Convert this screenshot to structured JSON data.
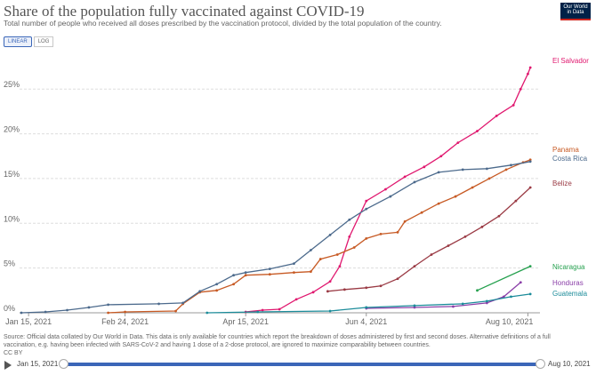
{
  "header": {
    "title": "Share of the population fully vaccinated against COVID-19",
    "subtitle": "Total number of people who received all doses prescribed by the vaccination protocol, divided by the total population of the country."
  },
  "logo": {
    "line1": "Our World",
    "line2": "in Data"
  },
  "scale_toggle": {
    "linear": "LINEAR",
    "log": "LOG",
    "selected": "linear"
  },
  "source_text": "Source: Official data collated by Our World in Data. This data is only available for countries which report the breakdown of doses administered by first and second doses. Alternative definitions of a full vaccination, e.g. having been infected with SARS-CoV-2 and having 1 dose of a 2-dose protocol, are ignored to maximize comparability between countries.",
  "license": "CC BY",
  "timeline": {
    "start": "Jan 15, 2021",
    "end": "Aug 10, 2021",
    "start_fraction": 0,
    "end_fraction": 1
  },
  "colors": {
    "El Salvador": "#e0186f",
    "Panama": "#c75a24",
    "Costa Rica": "#4c6a8c",
    "Belize": "#9a3a44",
    "Nicaragua": "#25a04e",
    "Honduras": "#8b3fa8",
    "Guatemala": "#1c8c9a"
  },
  "chart_data": {
    "type": "line",
    "title": "Share of the population fully vaccinated against COVID-19",
    "xlabel": "",
    "ylabel": "",
    "x_range": [
      "2021-01-12",
      "2021-08-15"
    ],
    "ylim": [
      0,
      28
    ],
    "x_ticks": [
      {
        "date": "2021-01-15",
        "label": "Jan 15, 2021"
      },
      {
        "date": "2021-02-24",
        "label": "Feb 24, 2021"
      },
      {
        "date": "2021-04-15",
        "label": "Apr 15, 2021"
      },
      {
        "date": "2021-06-04",
        "label": "Jun 4, 2021"
      },
      {
        "date": "2021-08-10",
        "label": "Aug 10, 2021"
      }
    ],
    "y_ticks": [
      {
        "value": 0,
        "label": "0%"
      },
      {
        "value": 5,
        "label": "5%"
      },
      {
        "value": 10,
        "label": "10%"
      },
      {
        "value": 15,
        "label": "15%"
      },
      {
        "value": 20,
        "label": "20%"
      },
      {
        "value": 25,
        "label": "25%"
      }
    ],
    "grid": true,
    "legend": "labels at line ends (right)",
    "series": [
      {
        "name": "El Salvador",
        "points": [
          {
            "x": "2021-04-15",
            "y": 0.1
          },
          {
            "x": "2021-04-22",
            "y": 0.3
          },
          {
            "x": "2021-04-29",
            "y": 0.4
          },
          {
            "x": "2021-05-06",
            "y": 1.5
          },
          {
            "x": "2021-05-13",
            "y": 2.3
          },
          {
            "x": "2021-05-20",
            "y": 3.5
          },
          {
            "x": "2021-05-24",
            "y": 5.2
          },
          {
            "x": "2021-05-28",
            "y": 8.5
          },
          {
            "x": "2021-06-04",
            "y": 12.5
          },
          {
            "x": "2021-06-12",
            "y": 13.8
          },
          {
            "x": "2021-06-20",
            "y": 15.2
          },
          {
            "x": "2021-06-28",
            "y": 16.3
          },
          {
            "x": "2021-07-05",
            "y": 17.5
          },
          {
            "x": "2021-07-12",
            "y": 19.0
          },
          {
            "x": "2021-07-20",
            "y": 20.3
          },
          {
            "x": "2021-07-28",
            "y": 22.0
          },
          {
            "x": "2021-08-04",
            "y": 23.2
          },
          {
            "x": "2021-08-07",
            "y": 25.0
          },
          {
            "x": "2021-08-10",
            "y": 26.7
          },
          {
            "x": "2021-08-11",
            "y": 27.4
          }
        ]
      },
      {
        "name": "Panama",
        "points": [
          {
            "x": "2021-02-17",
            "y": 0.0
          },
          {
            "x": "2021-02-24",
            "y": 0.1
          },
          {
            "x": "2021-03-17",
            "y": 0.2
          },
          {
            "x": "2021-03-20",
            "y": 1.0
          },
          {
            "x": "2021-03-27",
            "y": 2.3
          },
          {
            "x": "2021-04-03",
            "y": 2.5
          },
          {
            "x": "2021-04-10",
            "y": 3.2
          },
          {
            "x": "2021-04-15",
            "y": 4.2
          },
          {
            "x": "2021-04-25",
            "y": 4.3
          },
          {
            "x": "2021-05-05",
            "y": 4.5
          },
          {
            "x": "2021-05-12",
            "y": 4.6
          },
          {
            "x": "2021-05-16",
            "y": 6.0
          },
          {
            "x": "2021-05-23",
            "y": 6.5
          },
          {
            "x": "2021-05-30",
            "y": 7.3
          },
          {
            "x": "2021-06-04",
            "y": 8.3
          },
          {
            "x": "2021-06-10",
            "y": 8.8
          },
          {
            "x": "2021-06-17",
            "y": 9.0
          },
          {
            "x": "2021-06-20",
            "y": 10.2
          },
          {
            "x": "2021-06-27",
            "y": 11.2
          },
          {
            "x": "2021-07-04",
            "y": 12.2
          },
          {
            "x": "2021-07-11",
            "y": 13.0
          },
          {
            "x": "2021-07-18",
            "y": 14.0
          },
          {
            "x": "2021-07-25",
            "y": 15.0
          },
          {
            "x": "2021-08-01",
            "y": 16.0
          },
          {
            "x": "2021-08-08",
            "y": 16.8
          },
          {
            "x": "2021-08-11",
            "y": 17.1
          }
        ]
      },
      {
        "name": "Costa Rica",
        "points": [
          {
            "x": "2021-01-12",
            "y": 0.0
          },
          {
            "x": "2021-01-22",
            "y": 0.1
          },
          {
            "x": "2021-01-31",
            "y": 0.3
          },
          {
            "x": "2021-02-09",
            "y": 0.6
          },
          {
            "x": "2021-02-17",
            "y": 0.9
          },
          {
            "x": "2021-03-10",
            "y": 1.0
          },
          {
            "x": "2021-03-20",
            "y": 1.1
          },
          {
            "x": "2021-03-27",
            "y": 2.4
          },
          {
            "x": "2021-04-03",
            "y": 3.2
          },
          {
            "x": "2021-04-10",
            "y": 4.2
          },
          {
            "x": "2021-04-15",
            "y": 4.5
          },
          {
            "x": "2021-04-25",
            "y": 4.9
          },
          {
            "x": "2021-05-05",
            "y": 5.5
          },
          {
            "x": "2021-05-12",
            "y": 7.0
          },
          {
            "x": "2021-05-20",
            "y": 8.7
          },
          {
            "x": "2021-05-28",
            "y": 10.4
          },
          {
            "x": "2021-06-04",
            "y": 11.6
          },
          {
            "x": "2021-06-14",
            "y": 13.0
          },
          {
            "x": "2021-06-24",
            "y": 14.6
          },
          {
            "x": "2021-07-04",
            "y": 15.7
          },
          {
            "x": "2021-07-14",
            "y": 16.0
          },
          {
            "x": "2021-07-24",
            "y": 16.1
          },
          {
            "x": "2021-08-03",
            "y": 16.5
          },
          {
            "x": "2021-08-11",
            "y": 16.9
          }
        ]
      },
      {
        "name": "Belize",
        "points": [
          {
            "x": "2021-05-19",
            "y": 2.4
          },
          {
            "x": "2021-05-26",
            "y": 2.6
          },
          {
            "x": "2021-06-04",
            "y": 2.8
          },
          {
            "x": "2021-06-10",
            "y": 3.0
          },
          {
            "x": "2021-06-17",
            "y": 3.8
          },
          {
            "x": "2021-06-24",
            "y": 5.2
          },
          {
            "x": "2021-07-01",
            "y": 6.5
          },
          {
            "x": "2021-07-08",
            "y": 7.5
          },
          {
            "x": "2021-07-15",
            "y": 8.5
          },
          {
            "x": "2021-07-22",
            "y": 9.6
          },
          {
            "x": "2021-07-29",
            "y": 10.8
          },
          {
            "x": "2021-08-05",
            "y": 12.5
          },
          {
            "x": "2021-08-11",
            "y": 14.0
          }
        ]
      },
      {
        "name": "Nicaragua",
        "points": [
          {
            "x": "2021-07-20",
            "y": 2.5
          },
          {
            "x": "2021-08-11",
            "y": 5.2
          }
        ]
      },
      {
        "name": "Honduras",
        "points": [
          {
            "x": "2021-06-04",
            "y": 0.5
          },
          {
            "x": "2021-06-24",
            "y": 0.6
          },
          {
            "x": "2021-07-10",
            "y": 0.7
          },
          {
            "x": "2021-07-24",
            "y": 1.1
          },
          {
            "x": "2021-07-31",
            "y": 1.8
          },
          {
            "x": "2021-08-07",
            "y": 3.4
          }
        ]
      },
      {
        "name": "Guatemala",
        "points": [
          {
            "x": "2021-03-30",
            "y": 0.0
          },
          {
            "x": "2021-04-20",
            "y": 0.1
          },
          {
            "x": "2021-05-20",
            "y": 0.2
          },
          {
            "x": "2021-06-04",
            "y": 0.6
          },
          {
            "x": "2021-06-24",
            "y": 0.8
          },
          {
            "x": "2021-07-14",
            "y": 1.0
          },
          {
            "x": "2021-07-24",
            "y": 1.3
          },
          {
            "x": "2021-08-03",
            "y": 1.8
          },
          {
            "x": "2021-08-11",
            "y": 2.1
          }
        ]
      }
    ]
  }
}
